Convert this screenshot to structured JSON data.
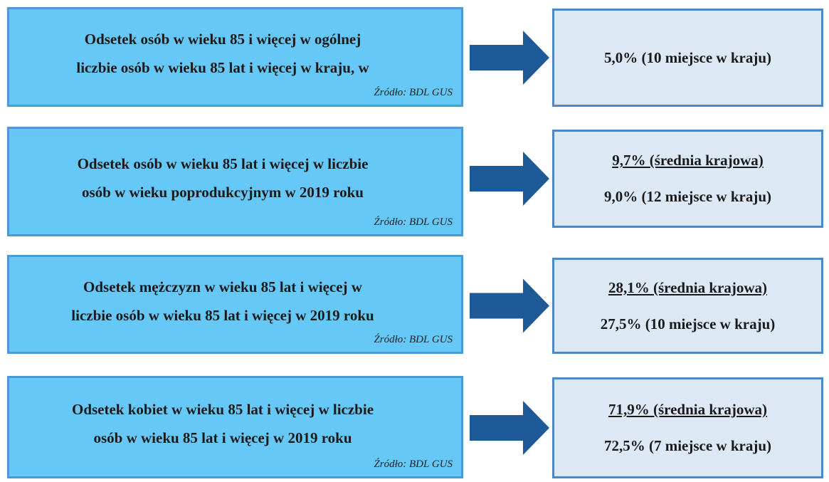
{
  "rows": [
    {
      "description": [
        "Odsetek osób w wieku 85 i więcej w ogólnej",
        "liczbie osób w wieku 85 lat i więcej w kraju, w"
      ],
      "source": "Źródło: BDL GUS",
      "value": "5,0% (10 miejsce w kraju)"
    },
    {
      "description": [
        "Odsetek osób w wieku 85 lat i więcej w liczbie",
        "osób w wieku poprodukcyjnym w 2019 roku"
      ],
      "source": "Źródło: BDL GUS",
      "national": "9,7% (średnia krajowa)",
      "value": "9,0% (12 miejsce w kraju)"
    },
    {
      "description": [
        "Odsetek mężczyzn w wieku 85 lat i więcej w",
        "liczbie osób w wieku 85 lat i więcej w 2019 roku"
      ],
      "source": "Źródło: BDL GUS",
      "national": "28,1% (średnia krajowa)",
      "value": "27,5% (10 miejsce w kraju)"
    },
    {
      "description": [
        "Odsetek kobiet w wieku 85 lat i więcej w liczbie",
        "osób w wieku 85 lat i więcej w 2019 roku"
      ],
      "source": "Źródło: BDL GUS",
      "national": "71,9% (średnia krajowa)",
      "value": "72,5% (7 miejsce w kraju)"
    }
  ]
}
